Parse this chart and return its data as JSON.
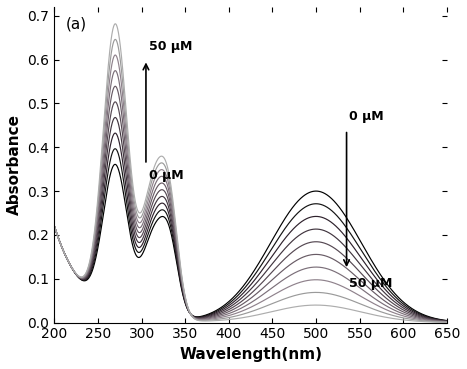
{
  "xlim": [
    200,
    650
  ],
  "ylim": [
    0.0,
    0.72
  ],
  "xlabel": "Wavelength(nm)",
  "ylabel": "Absorbance",
  "panel_label": "(a)",
  "xticks": [
    200,
    250,
    300,
    350,
    400,
    450,
    500,
    550,
    600,
    650
  ],
  "yticks": [
    0.0,
    0.1,
    0.2,
    0.3,
    0.4,
    0.5,
    0.6,
    0.7
  ],
  "n_curves": 10,
  "annotation_left_label_top": "50 μM",
  "annotation_left_label_bot": "0 μM",
  "annotation_right_label_top": "0 μM",
  "annotation_right_label_bot": "50 μM",
  "figsize": [
    4.67,
    3.69
  ],
  "dpi": 100
}
